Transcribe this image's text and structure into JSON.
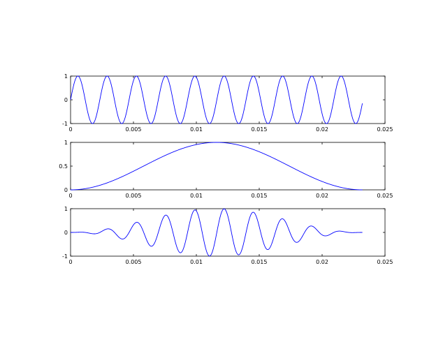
{
  "chart_data": [
    {
      "type": "line",
      "title": "",
      "xlabel": "",
      "ylabel": "",
      "xlim": [
        0,
        0.025
      ],
      "ylim": [
        -1,
        1
      ],
      "xticks": [
        "0",
        "0.005",
        "0.01",
        "0.015",
        "0.02",
        "0.025"
      ],
      "yticks": [
        "-1",
        "0",
        "1"
      ],
      "x_range": [
        0,
        0.0232
      ],
      "series": [
        {
          "function": "sin(2*pi*430*t)",
          "color": "#0000ff"
        }
      ],
      "grid": false,
      "legend": false
    },
    {
      "type": "line",
      "title": "",
      "xlabel": "",
      "ylabel": "",
      "xlim": [
        0,
        0.025
      ],
      "ylim": [
        0,
        1
      ],
      "xticks": [
        "0",
        "0.005",
        "0.01",
        "0.015",
        "0.02",
        "0.025"
      ],
      "yticks": [
        "0",
        "0.5",
        "1"
      ],
      "x_range": [
        0,
        0.0232
      ],
      "series": [
        {
          "function": "0.5 - 0.5*cos(2*pi*t/0.0232)",
          "color": "#0000ff"
        }
      ],
      "grid": false,
      "legend": false
    },
    {
      "type": "line",
      "title": "",
      "xlabel": "",
      "ylabel": "",
      "xlim": [
        0,
        0.025
      ],
      "ylim": [
        -1,
        1
      ],
      "xticks": [
        "0",
        "0.005",
        "0.01",
        "0.015",
        "0.02",
        "0.025"
      ],
      "yticks": [
        "-1",
        "0",
        "1"
      ],
      "x_range": [
        0,
        0.0232
      ],
      "series": [
        {
          "function": "sin(2*pi*430*t) * (0.5 - 0.5*cos(2*pi*t/0.0232))",
          "color": "#0000ff"
        }
      ],
      "grid": false,
      "legend": false
    }
  ]
}
